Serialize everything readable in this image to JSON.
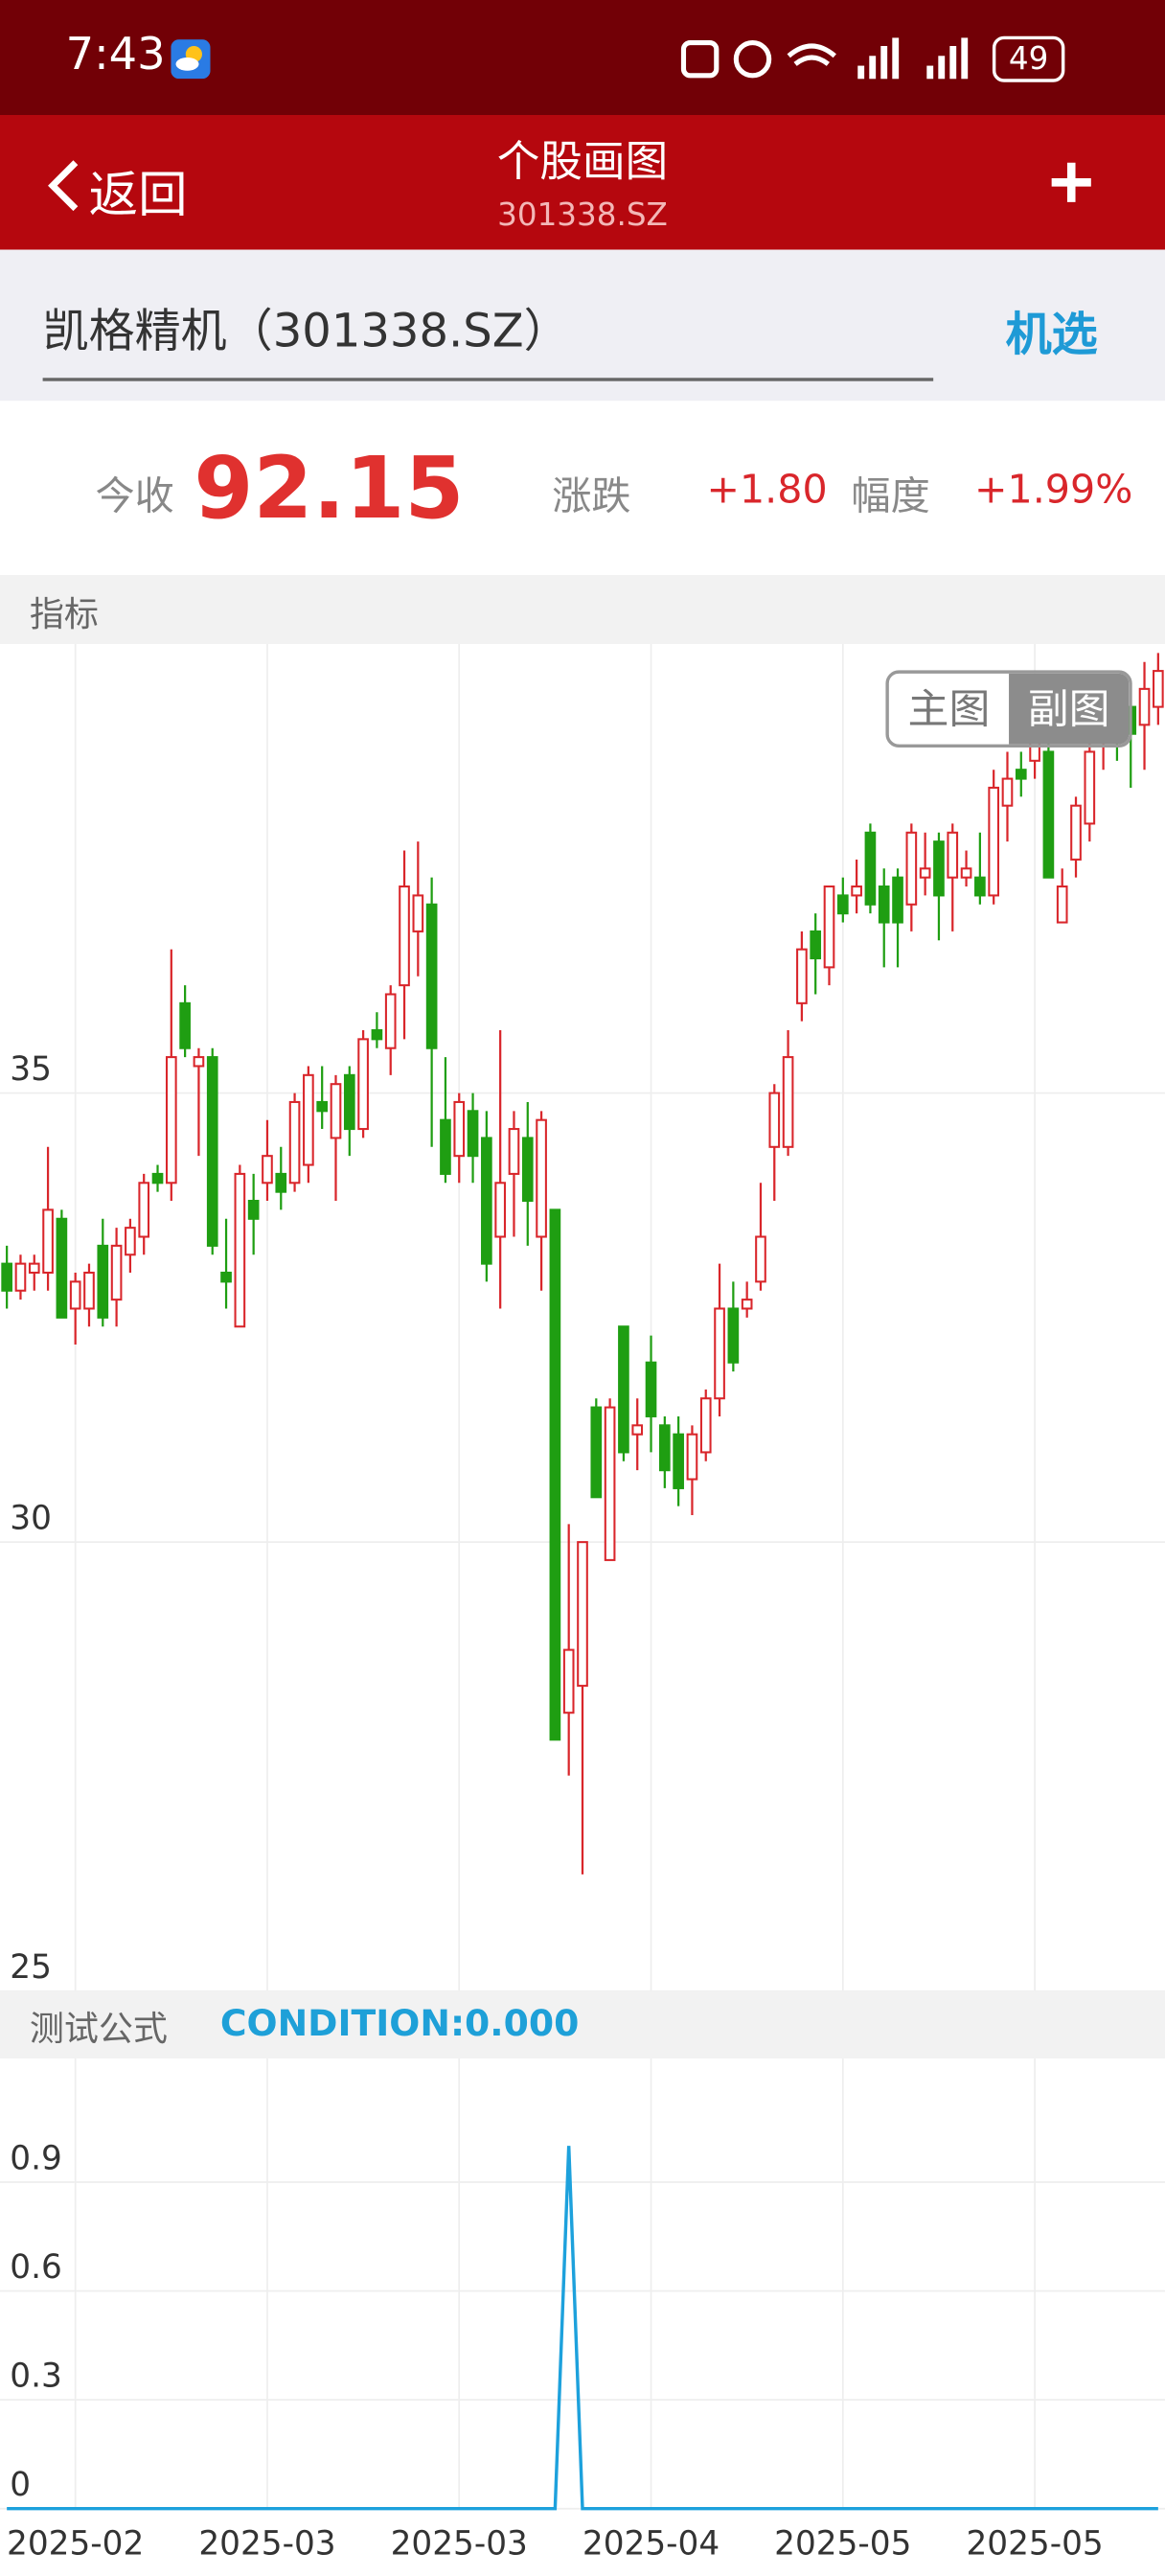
{
  "status_bar": {
    "time": "7:43",
    "battery": "49"
  },
  "nav": {
    "back": "返回",
    "title": "个股画图",
    "subtitle": "301338.SZ"
  },
  "search": {
    "text": "凯格精机（301338.SZ）",
    "button": "机选"
  },
  "quote": {
    "close_label": "今收",
    "close": "92.15",
    "change_label": "涨跌",
    "change": "+1.80",
    "pct_label": "幅度",
    "pct": "+1.99%"
  },
  "indicator_bar": {
    "label": "指标"
  },
  "toggle": {
    "main": "主图",
    "sub": "副图"
  },
  "formula_bar": {
    "label": "测试公式",
    "condition": "CONDITION:0.000"
  },
  "chart_data": [
    {
      "type": "candlestick",
      "up_color": "#d9262b",
      "down_color": "#1f9e12",
      "ylim": [
        25,
        40
      ],
      "yticks": [
        25,
        30,
        35
      ],
      "grid": true,
      "open": [
        33.1,
        32.8,
        33.0,
        33.0,
        33.6,
        32.6,
        32.6,
        33.3,
        32.7,
        33.2,
        33.4,
        34.1,
        34.0,
        36.0,
        35.3,
        35.4,
        33.0,
        32.4,
        33.8,
        34.0,
        34.1,
        34.0,
        34.2,
        34.9,
        34.5,
        35.2,
        34.6,
        35.7,
        35.5,
        36.2,
        36.8,
        37.1,
        34.7,
        34.3,
        34.8,
        34.5,
        33.4,
        34.1,
        34.5,
        33.4,
        33.7,
        28.1,
        28.4,
        31.5,
        29.8,
        32.4,
        31.2,
        32.0,
        31.3,
        31.2,
        30.7,
        31.0,
        31.6,
        32.6,
        32.6,
        32.9,
        34.4,
        34.4,
        36.0,
        36.8,
        36.4,
        37.2,
        37.2,
        37.9,
        37.3,
        37.4,
        37.1,
        37.4,
        37.8,
        37.4,
        37.4,
        37.4,
        37.2,
        38.2,
        38.6,
        38.7,
        38.8,
        36.9,
        37.6,
        38.0,
        38.9,
        39.2,
        39.3,
        39.1,
        39.3
      ],
      "high": [
        33.3,
        33.2,
        33.2,
        34.4,
        33.7,
        33.0,
        33.1,
        33.6,
        33.5,
        33.6,
        34.1,
        34.2,
        36.6,
        36.2,
        35.5,
        35.5,
        33.6,
        34.2,
        34.1,
        34.7,
        34.4,
        35.0,
        35.3,
        35.3,
        35.2,
        35.3,
        35.7,
        35.9,
        36.2,
        37.7,
        37.8,
        37.4,
        35.4,
        35.0,
        35.0,
        34.8,
        35.7,
        34.8,
        34.9,
        34.8,
        33.7,
        30.2,
        30.0,
        31.6,
        31.6,
        32.4,
        31.6,
        32.3,
        31.4,
        31.4,
        31.3,
        31.7,
        33.1,
        32.9,
        32.9,
        34.0,
        35.1,
        35.7,
        36.8,
        37.0,
        37.3,
        37.4,
        37.6,
        38.0,
        37.5,
        37.5,
        38.0,
        37.9,
        37.9,
        38.0,
        37.7,
        37.9,
        38.6,
        38.8,
        38.8,
        39.5,
        38.9,
        37.5,
        38.3,
        38.9,
        39.2,
        39.5,
        39.5,
        39.8,
        39.9
      ],
      "low": [
        32.6,
        32.7,
        32.8,
        32.8,
        32.5,
        32.2,
        32.4,
        32.4,
        32.4,
        33.0,
        33.2,
        33.9,
        33.8,
        35.4,
        34.3,
        33.2,
        32.6,
        32.4,
        33.2,
        33.8,
        33.7,
        33.9,
        34.0,
        34.6,
        33.8,
        34.3,
        34.5,
        35.5,
        35.2,
        35.6,
        36.3,
        34.4,
        34.0,
        34.0,
        34.0,
        32.9,
        32.6,
        33.4,
        33.3,
        32.8,
        27.8,
        27.4,
        26.3,
        30.5,
        29.8,
        30.9,
        30.8,
        31.0,
        30.6,
        30.4,
        30.3,
        30.9,
        31.4,
        31.9,
        32.5,
        32.8,
        33.8,
        34.3,
        35.8,
        36.1,
        36.2,
        36.9,
        37.0,
        37.0,
        36.4,
        36.4,
        36.8,
        37.2,
        36.7,
        36.8,
        37.3,
        37.1,
        37.1,
        37.8,
        38.3,
        38.5,
        37.4,
        36.9,
        37.4,
        37.8,
        38.6,
        38.7,
        38.4,
        38.6,
        39.1
      ],
      "close": [
        32.8,
        33.1,
        33.1,
        33.7,
        32.5,
        32.9,
        33.0,
        32.5,
        33.3,
        33.5,
        34.0,
        34.0,
        35.4,
        35.5,
        35.4,
        33.3,
        32.9,
        34.1,
        33.6,
        34.3,
        33.9,
        34.9,
        35.2,
        34.8,
        35.1,
        34.6,
        35.6,
        35.6,
        36.1,
        37.3,
        37.2,
        35.5,
        34.1,
        34.9,
        34.3,
        33.1,
        34.0,
        34.6,
        33.8,
        34.7,
        27.8,
        28.8,
        30.0,
        30.5,
        31.5,
        31.0,
        31.3,
        31.4,
        30.8,
        30.6,
        31.2,
        31.6,
        32.6,
        32.0,
        32.7,
        33.4,
        35.0,
        35.4,
        36.6,
        36.5,
        37.3,
        37.0,
        37.3,
        37.1,
        36.9,
        36.9,
        37.9,
        37.5,
        37.2,
        37.9,
        37.5,
        37.2,
        38.4,
        38.5,
        38.5,
        39.1,
        37.4,
        37.3,
        38.2,
        38.8,
        39.1,
        39.1,
        39.0,
        39.5,
        39.7
      ]
    },
    {
      "type": "line",
      "color": "#1da1dc",
      "ylim": [
        0,
        1.2
      ],
      "yticks": [
        0,
        0.3,
        0.6,
        0.9
      ],
      "grid": true,
      "categories": [
        null,
        null,
        null,
        null,
        null,
        "2025-02",
        null,
        null,
        null,
        null,
        null,
        null,
        null,
        null,
        null,
        null,
        null,
        null,
        null,
        "2025-03",
        null,
        null,
        null,
        null,
        null,
        null,
        null,
        null,
        null,
        null,
        null,
        null,
        null,
        "2025-03",
        null,
        null,
        null,
        null,
        null,
        null,
        null,
        null,
        null,
        null,
        null,
        null,
        null,
        "2025-04",
        null,
        null,
        null,
        null,
        null,
        null,
        null,
        null,
        null,
        null,
        null,
        null,
        null,
        "2025-05",
        null,
        null,
        null,
        null,
        null,
        null,
        null,
        null,
        null,
        null,
        null,
        null,
        null,
        "2025-05",
        null,
        null,
        null,
        null,
        null,
        null,
        null,
        null,
        null
      ],
      "values": [
        0,
        0,
        0,
        0,
        0,
        0,
        0,
        0,
        0,
        0,
        0,
        0,
        0,
        0,
        0,
        0,
        0,
        0,
        0,
        0,
        0,
        0,
        0,
        0,
        0,
        0,
        0,
        0,
        0,
        0,
        0,
        0,
        0,
        0,
        0,
        0,
        0,
        0,
        0,
        0,
        0,
        1,
        0,
        0,
        0,
        0,
        0,
        0,
        0,
        0,
        0,
        0,
        0,
        0,
        0,
        0,
        0,
        0,
        0,
        0,
        0,
        0,
        0,
        0,
        0,
        0,
        0,
        0,
        0,
        0,
        0,
        0,
        0,
        0,
        0,
        0,
        0,
        0,
        0,
        0,
        0,
        0,
        0,
        0,
        0
      ]
    }
  ]
}
